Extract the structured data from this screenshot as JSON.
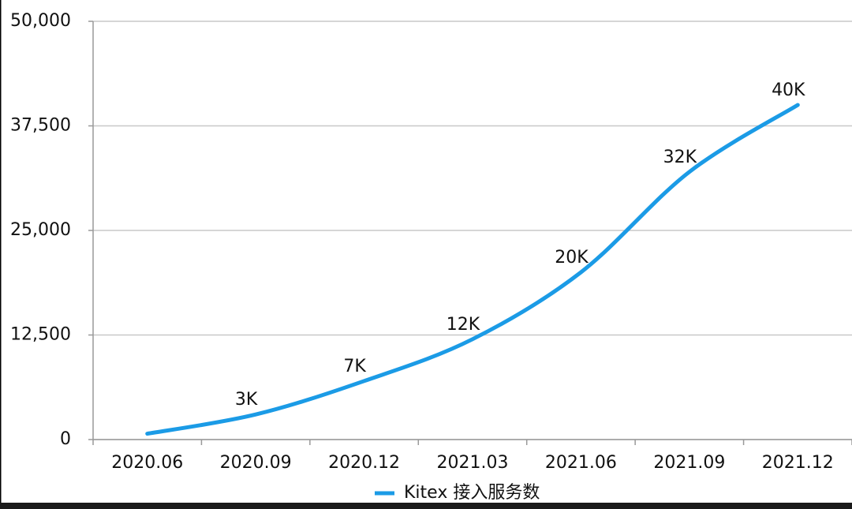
{
  "chart_data": {
    "type": "line",
    "categories": [
      "2020.06",
      "2020.09",
      "2020.12",
      "2021.03",
      "2021.06",
      "2021.09",
      "2021.12"
    ],
    "series": [
      {
        "name": "Kitex 接入服务数",
        "color": "#1b9be6",
        "values": [
          700,
          3000,
          7000,
          12000,
          20000,
          32000,
          40000
        ],
        "value_labels": [
          null,
          "3K",
          "7K",
          "12K",
          "20K",
          "32K",
          "40K"
        ]
      }
    ],
    "ylim": [
      0,
      50000
    ],
    "yticks": [
      0,
      {
        "value": 12500,
        "label": "12,500"
      },
      {
        "value": 25000,
        "label": "25,000"
      },
      {
        "value": 37500,
        "label": "37,500"
      },
      {
        "value": 50000,
        "label": "50,000"
      }
    ],
    "grid": true
  }
}
